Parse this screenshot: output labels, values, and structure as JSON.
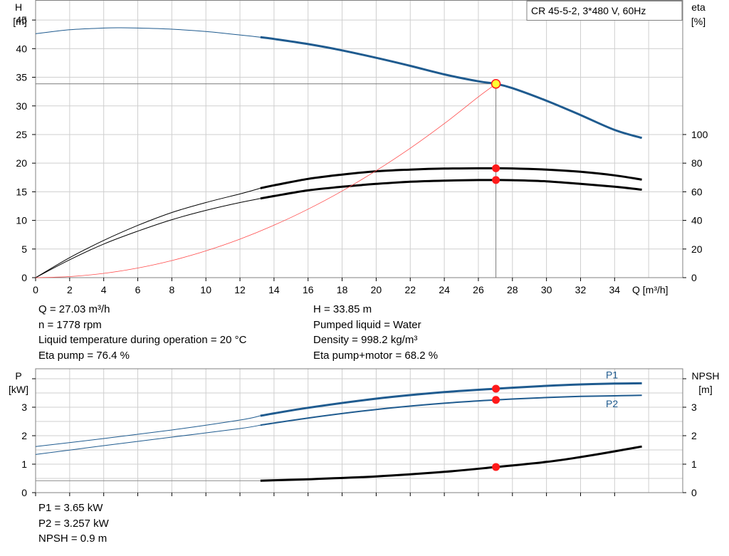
{
  "chart_data": [
    {
      "type": "line",
      "title": "CR 45-5-2, 3*480 V, 60Hz",
      "xlabel": "Q [m³/h]",
      "ylabel_left_name": "H",
      "ylabel_left_unit": "[m]",
      "ylabel_right_name": "eta",
      "ylabel_right_unit": "[%]",
      "xlim": [
        0,
        38
      ],
      "ylim_left": [
        0,
        48.5
      ],
      "ylim_right": [
        0,
        194
      ],
      "x_ticks": [
        "0",
        "2",
        "4",
        "6",
        "8",
        "10",
        "12",
        "14",
        "16",
        "18",
        "20",
        "22",
        "24",
        "26",
        "28",
        "30",
        "32",
        "34"
      ],
      "y_ticks_left": [
        "0",
        "5",
        "10",
        "15",
        "20",
        "25",
        "30",
        "35",
        "40",
        "45"
      ],
      "y_ticks_right": [
        "0",
        "20",
        "40",
        "60",
        "80",
        "100"
      ],
      "grid": true,
      "operating_point": {
        "Q": 27.03,
        "H": 33.85
      },
      "series": [
        {
          "axis": "left",
          "color": "#1f5b8f",
          "x": [
            0,
            2,
            4,
            5,
            6,
            8,
            10,
            12,
            13.2,
            14,
            16,
            18,
            20,
            22,
            24,
            26,
            27.03,
            28,
            30,
            32,
            34,
            35.6
          ],
          "y": [
            42.6,
            43.3,
            43.6,
            43.65,
            43.6,
            43.4,
            43.0,
            42.4,
            42.0,
            41.7,
            40.8,
            39.7,
            38.4,
            37.0,
            35.5,
            34.3,
            33.85,
            33.1,
            30.9,
            28.4,
            25.8,
            24.4
          ],
          "bold_from": 13.2
        },
        {
          "axis": "right",
          "color": "#000000",
          "x": [
            0,
            2,
            4,
            6,
            8,
            10,
            12,
            13.2,
            14,
            16,
            18,
            20,
            22,
            24,
            26,
            27.03,
            28,
            30,
            32,
            34,
            35.6
          ],
          "y": [
            0,
            14,
            26,
            36.5,
            45.5,
            52.5,
            58.5,
            62.5,
            64.5,
            69,
            72,
            74.3,
            75.5,
            76.2,
            76.4,
            76.4,
            76.3,
            75.5,
            74,
            71.5,
            68.5
          ],
          "bold_from": 13.2
        },
        {
          "axis": "right",
          "color": "#000000",
          "x": [
            0,
            2,
            4,
            6,
            8,
            10,
            12,
            13.2,
            14,
            16,
            18,
            20,
            22,
            24,
            26,
            27.03,
            28,
            30,
            32,
            34,
            35.6
          ],
          "y": [
            0,
            12.5,
            23.5,
            32.5,
            40.5,
            47,
            52.5,
            55.3,
            57,
            61,
            63.5,
            65.5,
            67,
            67.8,
            68.2,
            68.2,
            68.1,
            67.3,
            65.5,
            63.5,
            61.5
          ],
          "bold_from": 13.2
        },
        {
          "axis": "left",
          "color": "#ff4a4a",
          "thin": true,
          "x": [
            0,
            2,
            4,
            6,
            8,
            10,
            12,
            14,
            16,
            18,
            20,
            22,
            24,
            26,
            27.03
          ],
          "y": [
            0,
            0.19,
            0.75,
            1.68,
            2.99,
            4.67,
            6.73,
            9.16,
            11.96,
            15.14,
            18.69,
            22.61,
            26.91,
            31.58,
            33.85
          ]
        }
      ],
      "markers": [
        {
          "axis": "left",
          "x": 27.03,
          "y": 33.85,
          "style": "yellow"
        },
        {
          "axis": "right",
          "x": 27.03,
          "y": 76.4,
          "style": "red"
        },
        {
          "axis": "right",
          "x": 27.03,
          "y": 68.2,
          "style": "red"
        }
      ]
    },
    {
      "type": "line",
      "ylabel_left_name": "P",
      "ylabel_left_unit": "[kW]",
      "ylabel_right_name": "NPSH",
      "ylabel_right_unit": "[m]",
      "xlim": [
        0,
        38
      ],
      "ylim": [
        0,
        4.35
      ],
      "y_ticks": [
        "0",
        "1",
        "2",
        "3"
      ],
      "grid": true,
      "series": [
        {
          "name": "P1",
          "color": "#1f5b8f",
          "x": [
            0,
            4,
            8,
            12,
            13.2,
            16,
            20,
            24,
            27.03,
            30,
            32,
            34,
            35.6
          ],
          "y": [
            1.62,
            1.9,
            2.2,
            2.55,
            2.7,
            2.98,
            3.3,
            3.53,
            3.65,
            3.75,
            3.8,
            3.83,
            3.84
          ],
          "bold_from": 13.2
        },
        {
          "name": "P2",
          "color": "#1f5b8f",
          "x": [
            0,
            4,
            8,
            12,
            13.2,
            16,
            20,
            24,
            27.03,
            30,
            32,
            34,
            35.6
          ],
          "y": [
            1.34,
            1.65,
            1.95,
            2.25,
            2.37,
            2.62,
            2.92,
            3.14,
            3.257,
            3.34,
            3.38,
            3.4,
            3.42
          ],
          "bold_from": 13.2
        },
        {
          "color": "#000000",
          "x": [
            0,
            4,
            8,
            12,
            13.2,
            16,
            20,
            24,
            27.03,
            30,
            32,
            34,
            35.6
          ],
          "y": [
            0.42,
            0.42,
            0.42,
            0.42,
            0.42,
            0.47,
            0.57,
            0.73,
            0.9,
            1.08,
            1.25,
            1.45,
            1.62
          ],
          "bold_from": 13.2
        }
      ],
      "markers": [
        {
          "x": 27.03,
          "y": 3.65,
          "style": "red"
        },
        {
          "x": 27.03,
          "y": 3.257,
          "style": "red"
        },
        {
          "x": 27.03,
          "y": 0.9,
          "style": "red"
        }
      ]
    }
  ],
  "info": {
    "q": "Q = 27.03 m³/h",
    "n": "n = 1778 rpm",
    "liquid_temp": "Liquid temperature during operation = 20 °C",
    "eta_pump": "Eta pump = 76.4 %",
    "h": "H = 33.85 m",
    "pumped_liquid": "Pumped liquid = Water",
    "density": "Density = 998.2 kg/m³",
    "eta_pump_motor": "Eta pump+motor = 68.2 %",
    "p1": "P1 = 3.65 kW",
    "p2": "P2 = 3.257 kW",
    "npsh": "NPSH = 0.9 m"
  }
}
